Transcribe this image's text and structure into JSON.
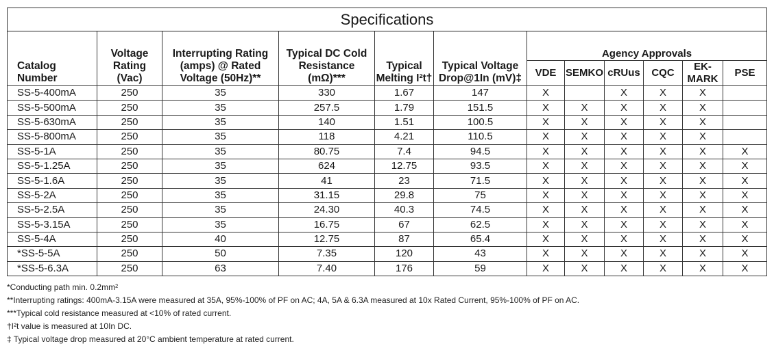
{
  "title": "Specifications",
  "headers": {
    "catalog": [
      "Catalog",
      "Number"
    ],
    "voltage": [
      "Voltage",
      "Rating",
      "(Vac)"
    ],
    "interrupting": [
      "Interrupting Rating",
      "(amps) @ Rated",
      "Voltage (50Hz)**"
    ],
    "resistance": [
      "Typical DC Cold",
      "Resistance (mΩ)***"
    ],
    "melting": [
      "Typical",
      "Melting I²t†"
    ],
    "vdrop": [
      "Typical Voltage",
      "Drop@1In (mV)‡"
    ],
    "agency": "Agency Approvals",
    "agencies": [
      "VDE",
      "SEMKO",
      "cRUus",
      "CQC",
      "EK-MARK",
      "PSE"
    ]
  },
  "rows": [
    {
      "catalog": "SS-5-400mA",
      "voltage": "250",
      "interrupting": "35",
      "resistance": "330",
      "melting": "1.67",
      "vdrop": "147",
      "approvals": [
        "X",
        "",
        "X",
        "X",
        "X",
        ""
      ]
    },
    {
      "catalog": "SS-5-500mA",
      "voltage": "250",
      "interrupting": "35",
      "resistance": "257.5",
      "melting": "1.79",
      "vdrop": "151.5",
      "approvals": [
        "X",
        "X",
        "X",
        "X",
        "X",
        ""
      ]
    },
    {
      "catalog": "SS-5-630mA",
      "voltage": "250",
      "interrupting": "35",
      "resistance": "140",
      "melting": "1.51",
      "vdrop": "100.5",
      "approvals": [
        "X",
        "X",
        "X",
        "X",
        "X",
        ""
      ]
    },
    {
      "catalog": "SS-5-800mA",
      "voltage": "250",
      "interrupting": "35",
      "resistance": "118",
      "melting": "4.21",
      "vdrop": "110.5",
      "approvals": [
        "X",
        "X",
        "X",
        "X",
        "X",
        ""
      ]
    },
    {
      "catalog": "SS-5-1A",
      "voltage": "250",
      "interrupting": "35",
      "resistance": "80.75",
      "melting": "7.4",
      "vdrop": "94.5",
      "approvals": [
        "X",
        "X",
        "X",
        "X",
        "X",
        "X"
      ]
    },
    {
      "catalog": "SS-5-1.25A",
      "voltage": "250",
      "interrupting": "35",
      "resistance": "624",
      "melting": "12.75",
      "vdrop": "93.5",
      "approvals": [
        "X",
        "X",
        "X",
        "X",
        "X",
        "X"
      ]
    },
    {
      "catalog": "SS-5-1.6A",
      "voltage": "250",
      "interrupting": "35",
      "resistance": "41",
      "melting": "23",
      "vdrop": "71.5",
      "approvals": [
        "X",
        "X",
        "X",
        "X",
        "X",
        "X"
      ]
    },
    {
      "catalog": "SS-5-2A",
      "voltage": "250",
      "interrupting": "35",
      "resistance": "31.15",
      "melting": "29.8",
      "vdrop": "75",
      "approvals": [
        "X",
        "X",
        "X",
        "X",
        "X",
        "X"
      ]
    },
    {
      "catalog": "SS-5-2.5A",
      "voltage": "250",
      "interrupting": "35",
      "resistance": "24.30",
      "melting": "40.3",
      "vdrop": "74.5",
      "approvals": [
        "X",
        "X",
        "X",
        "X",
        "X",
        "X"
      ]
    },
    {
      "catalog": "SS-5-3.15A",
      "voltage": "250",
      "interrupting": "35",
      "resistance": "16.75",
      "melting": "67",
      "vdrop": "62.5",
      "approvals": [
        "X",
        "X",
        "X",
        "X",
        "X",
        "X"
      ]
    },
    {
      "catalog": "SS-5-4A",
      "voltage": "250",
      "interrupting": "40",
      "resistance": "12.75",
      "melting": "87",
      "vdrop": "65.4",
      "approvals": [
        "X",
        "X",
        "X",
        "X",
        "X",
        "X"
      ]
    },
    {
      "catalog": "*SS-5-5A",
      "voltage": "250",
      "interrupting": "50",
      "resistance": "7.35",
      "melting": "120",
      "vdrop": "43",
      "approvals": [
        "X",
        "X",
        "X",
        "X",
        "X",
        "X"
      ]
    },
    {
      "catalog": "*SS-5-6.3A",
      "voltage": "250",
      "interrupting": "63",
      "resistance": "7.40",
      "melting": "176",
      "vdrop": "59",
      "approvals": [
        "X",
        "X",
        "X",
        "X",
        "X",
        "X"
      ]
    }
  ],
  "notes": [
    "*Conducting path min. 0.2mm²",
    "**Interrupting ratings: 400mA-3.15A were measured at 35A, 95%-100% of PF on AC; 4A, 5A & 6.3A measured at 10x Rated Current, 95%-100% of PF on AC.",
    "***Typical cold resistance measured at <10% of rated current.",
    "†I²t value is measured at 10In DC.",
    "‡ Typical voltage drop measured at 20°C ambient temperature at rated current."
  ]
}
